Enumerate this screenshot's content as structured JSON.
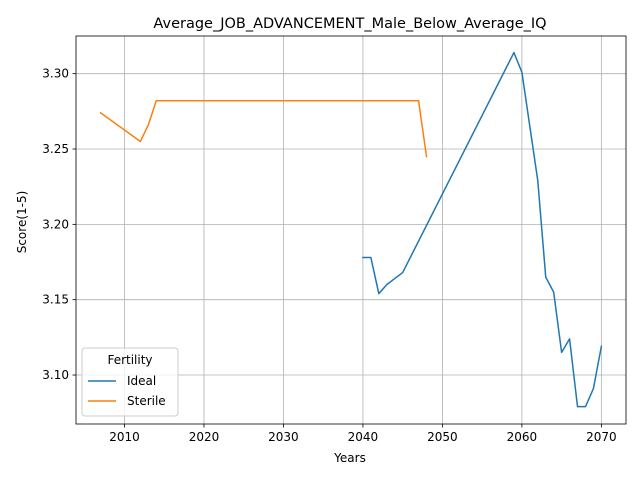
{
  "chart_data": {
    "type": "line",
    "title": "Average_JOB_ADVANCEMENT_Male_Below_Average_IQ",
    "xlabel": "Years",
    "ylabel": "Score(1-5)",
    "xlim": [
      2003.9,
      2073.1
    ],
    "ylim": [
      3.0675,
      3.325
    ],
    "xticks": [
      2010,
      2020,
      2030,
      2040,
      2050,
      2060,
      2070
    ],
    "xtick_labels": [
      "2010",
      "2020",
      "2030",
      "2040",
      "2050",
      "2060",
      "2070"
    ],
    "yticks": [
      3.1,
      3.15,
      3.2,
      3.25,
      3.3
    ],
    "ytick_labels": [
      "3.10",
      "3.15",
      "3.20",
      "3.25",
      "3.30"
    ],
    "grid": true,
    "legend": {
      "title": "Fertility",
      "position": "lower-left"
    },
    "series": [
      {
        "name": "Ideal",
        "color": "#1f77b4",
        "x": [
          2040,
          2041,
          2042,
          2043,
          2044,
          2045,
          2059,
          2060,
          2061,
          2062,
          2063,
          2064,
          2065,
          2066,
          2067,
          2068,
          2069,
          2070
        ],
        "y": [
          3.178,
          3.178,
          3.154,
          3.16,
          3.164,
          3.168,
          3.314,
          3.301,
          3.265,
          3.229,
          3.165,
          3.155,
          3.115,
          3.124,
          3.079,
          3.079,
          3.091,
          3.119
        ]
      },
      {
        "name": "Sterile",
        "color": "#ff7f0e",
        "x": [
          2007,
          2012,
          2013,
          2014,
          2047,
          2048
        ],
        "y": [
          3.274,
          3.255,
          3.266,
          3.282,
          3.282,
          3.245
        ]
      }
    ]
  }
}
